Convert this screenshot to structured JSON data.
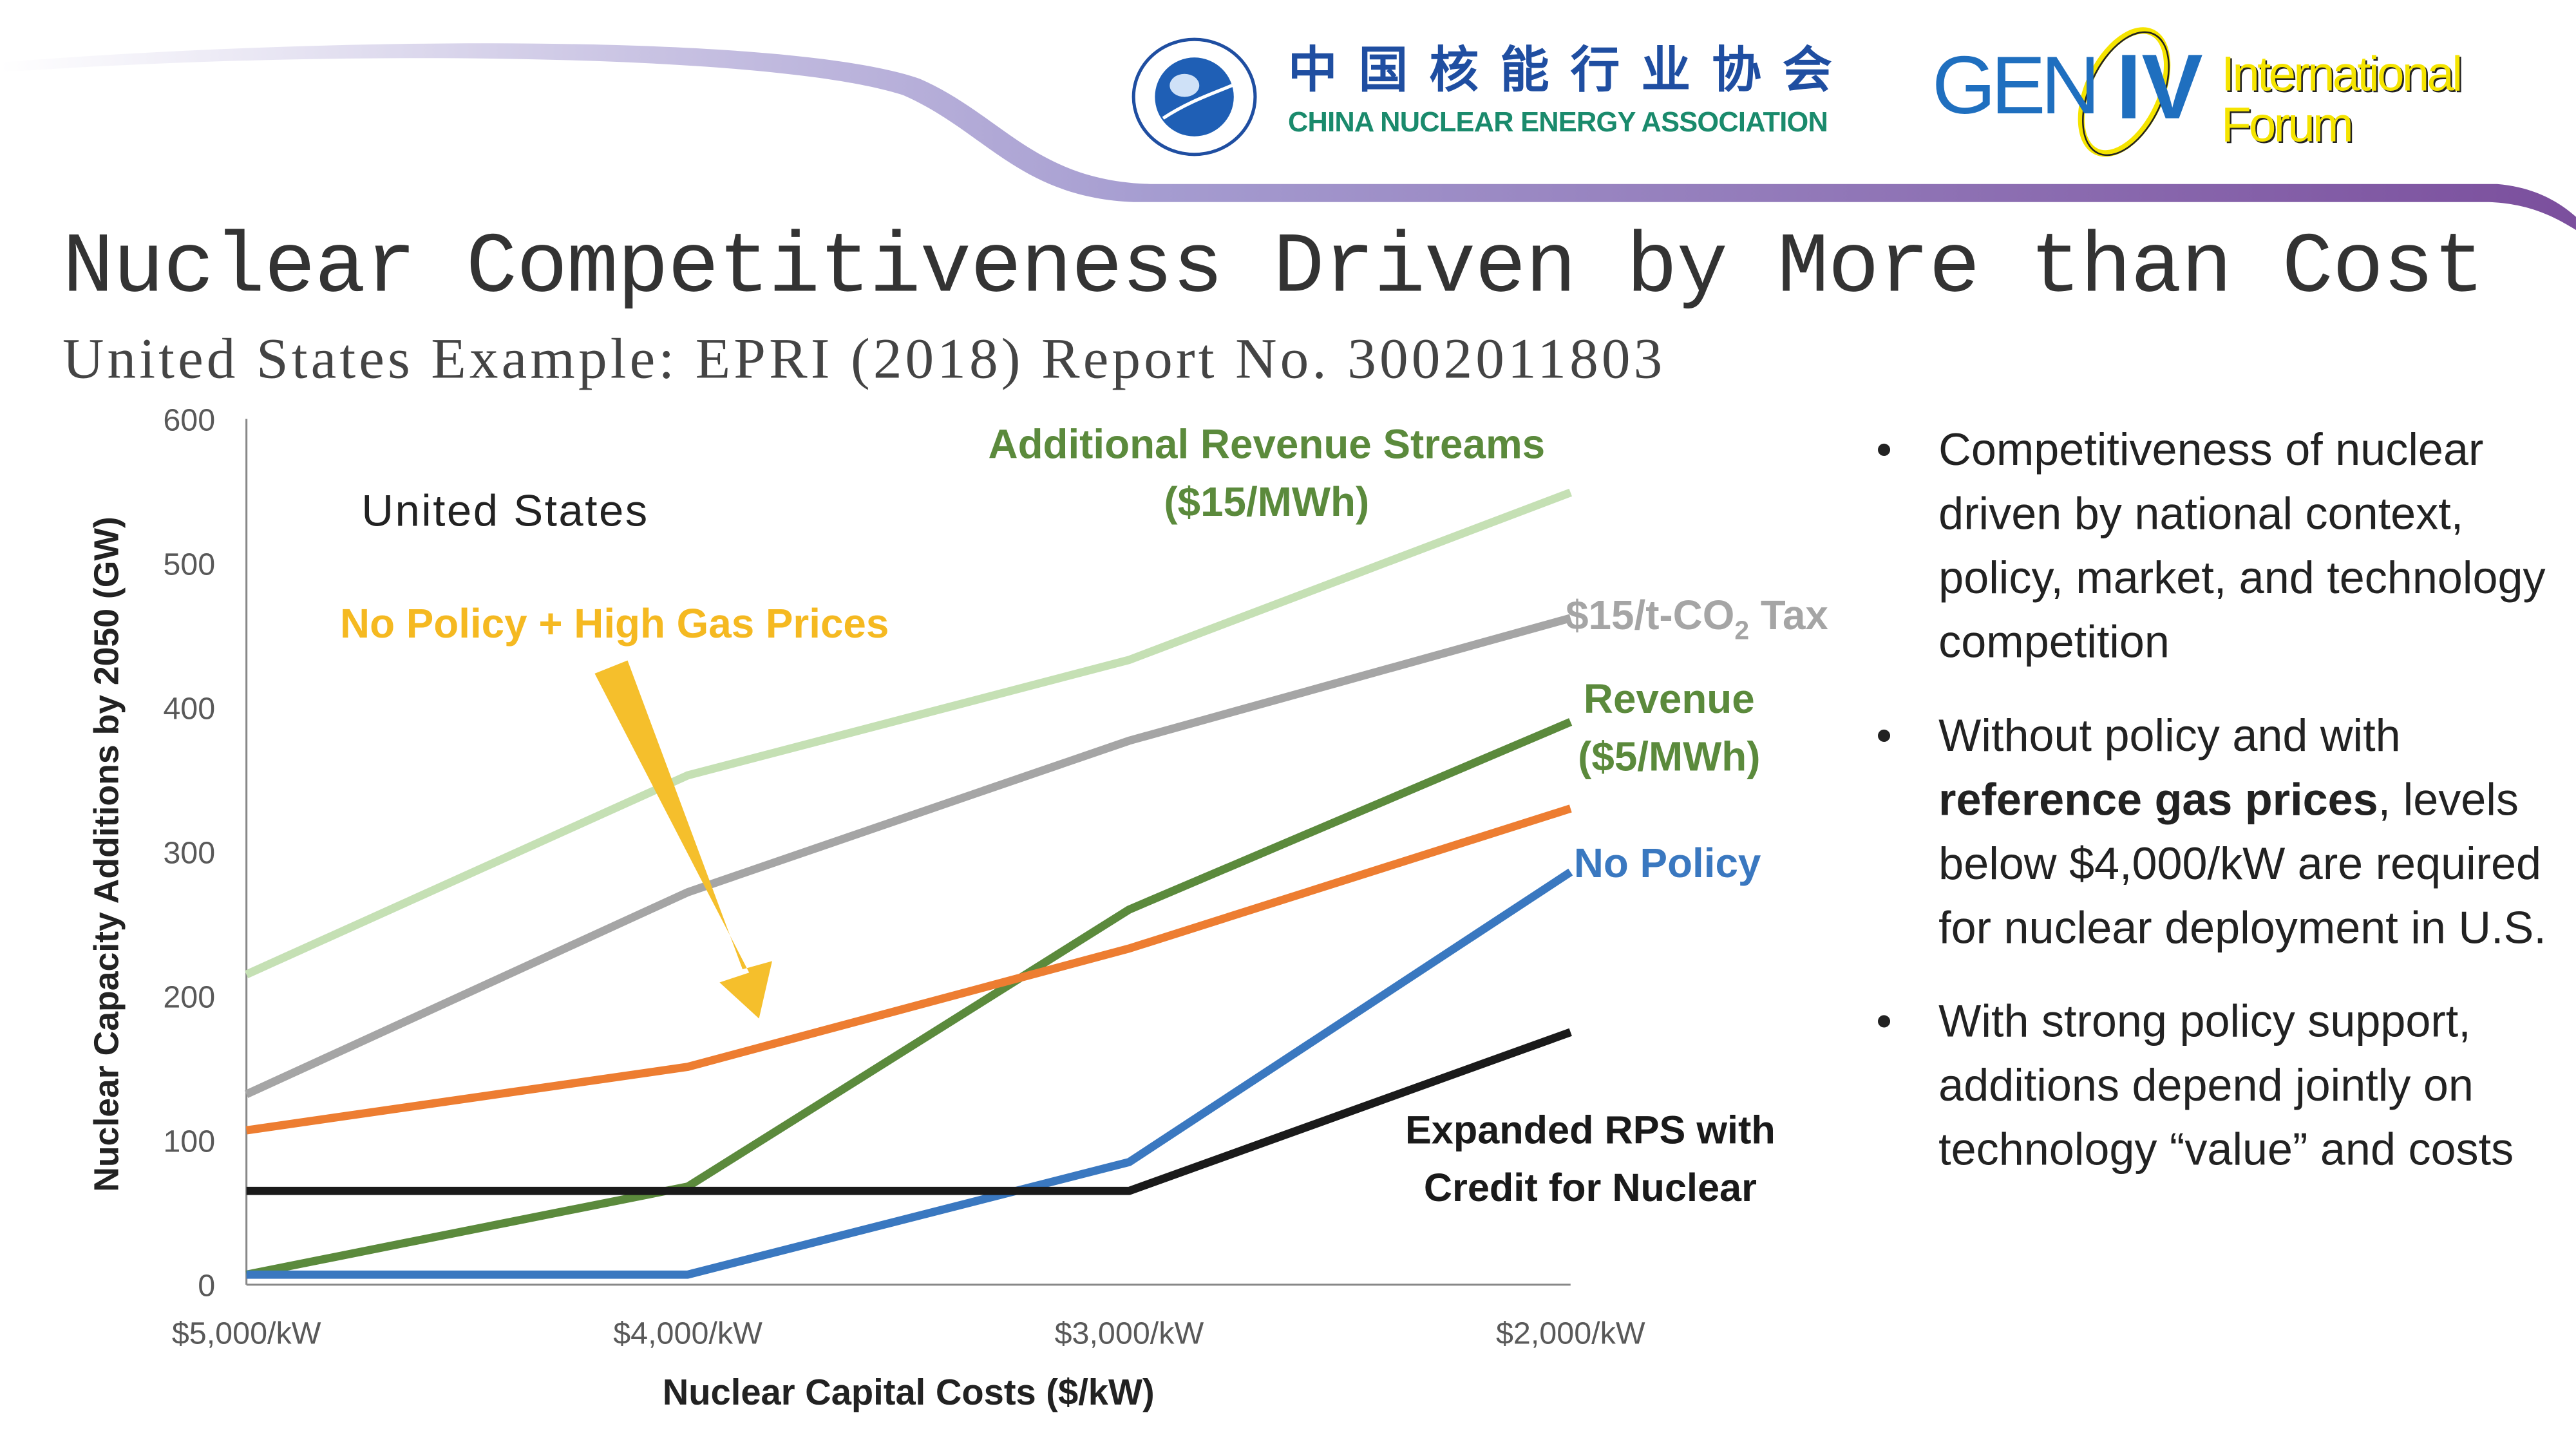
{
  "header": {
    "cnea_logo_cn": "中国核能行业协会",
    "cnea_logo_en": "CHINA NUCLEAR ENERGY ASSOCIATION",
    "gif_logo_gen": "GEN",
    "gif_logo_iv": "IV",
    "gif_logo_international": "International",
    "gif_logo_forum": "Forum"
  },
  "title": "Nuclear Competitiveness Driven by More than Cost",
  "subtitle": "United States Example: EPRI (2018) Report No. 3002011803",
  "colors": {
    "accent_purple": "#7b4f9d",
    "light_purple": "#c9c3e3"
  },
  "chart_data": {
    "type": "line",
    "region_label": "United States",
    "xlabel": "Nuclear Capital Costs ($/kW)",
    "ylabel": "Nuclear Capacity Additions by 2050 (GW)",
    "categories": [
      "$5,000/kW",
      "$4,000/kW",
      "$3,000/kW",
      "$2,000/kW"
    ],
    "ylim": [
      0,
      600
    ],
    "yticks": [
      "0",
      "100",
      "200",
      "300",
      "400",
      "500",
      "600"
    ],
    "grid": false,
    "series": [
      {
        "name": "Additional Revenue Streams ($15/MWh)",
        "label_lines": [
          "Additional Revenue Streams",
          "($15/MWh)"
        ],
        "color": "#c5e0b4",
        "label_color": "#5b8a3c",
        "values": [
          215,
          353,
          433,
          549
        ]
      },
      {
        "name": "$15/t-CO2 Tax",
        "label_main": "$15/t-CO",
        "label_sub": "2",
        "label_tail": " Tax",
        "color": "#a5a5a5",
        "label_color": "#a5a5a5",
        "values": [
          132,
          272,
          377,
          462
        ]
      },
      {
        "name": "Revenue ($5/MWh)",
        "label_lines": [
          "Revenue",
          "($5/MWh)"
        ],
        "color": "#5b8a3c",
        "label_color": "#5b8a3c",
        "values": [
          7,
          68,
          260,
          390
        ]
      },
      {
        "name": "No Policy + High Gas Prices",
        "label_lines": [
          "No Policy + High Gas Prices"
        ],
        "color": "#ed7d31",
        "label_color": "#f5b921",
        "values": [
          107,
          151,
          233,
          330
        ]
      },
      {
        "name": "No Policy",
        "label_lines": [
          "No Policy"
        ],
        "color": "#3a78c0",
        "label_color": "#3a78c0",
        "values": [
          7,
          7,
          85,
          286
        ]
      },
      {
        "name": "Expanded RPS with Credit for Nuclear",
        "label_lines": [
          "Expanded RPS with",
          "Credit for Nuclear"
        ],
        "color": "#1a1a1a",
        "label_color": "#1a1a1a",
        "values": [
          65,
          65,
          65,
          175
        ]
      }
    ],
    "arrow_color": "#f5bf2c"
  },
  "bullets": [
    {
      "parts": [
        {
          "text": "Competitiveness of nuclear driven by national context, policy, market, and technology competition",
          "bold": false
        }
      ]
    },
    {
      "parts": [
        {
          "text": "Without policy and with ",
          "bold": false
        },
        {
          "text": "reference gas prices",
          "bold": true
        },
        {
          "text": ", levels below $4,000/kW are required for nuclear deployment in U.S.",
          "bold": false
        }
      ]
    },
    {
      "parts": [
        {
          "text": "With strong policy support, additions depend jointly on technology “value” and costs",
          "bold": false
        }
      ]
    }
  ]
}
